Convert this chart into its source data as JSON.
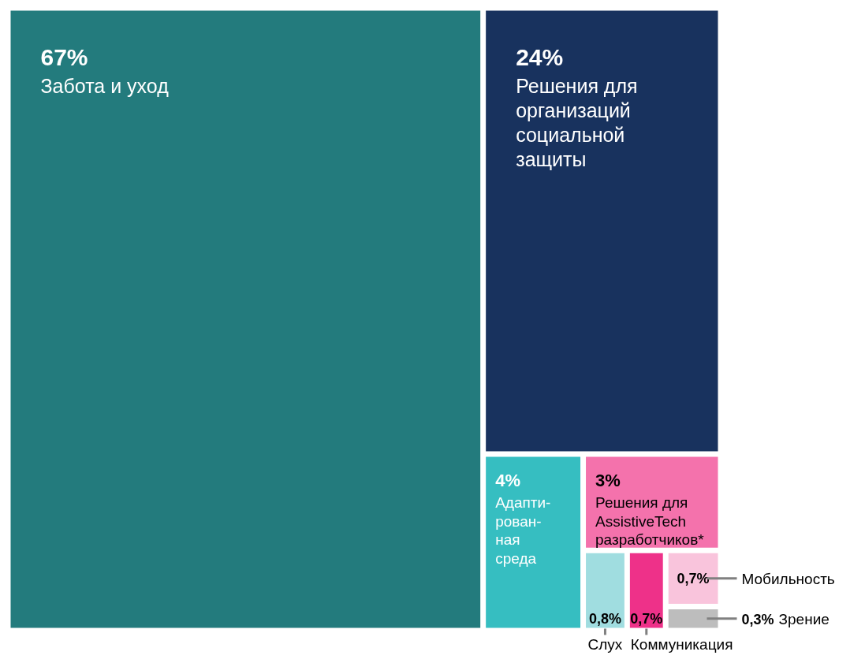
{
  "chart_data": {
    "type": "other",
    "categories": [
      "Забота и уход",
      "Решения для\nорганизаций\nсоциальной\nзащиты",
      "Адапти-\nрован-\nная\nсреда",
      "Решения для\nAssistiveTech\nразработчиков*",
      "Слух",
      "Коммуникация",
      "Мобильность",
      "Зрение"
    ],
    "values": [
      67,
      24,
      4,
      3,
      0.8,
      0.7,
      0.7,
      0.3
    ],
    "value_labels": [
      "67%",
      "24%",
      "4%",
      "3%",
      "0,8%",
      "0,7%",
      "0,7%",
      "0,3%"
    ],
    "colors": [
      "#237b7d",
      "#18325e",
      "#36bec1",
      "#f472ac",
      "#a0dde0",
      "#ee3189",
      "#f9c4dc",
      "#bdbdbd"
    ]
  }
}
